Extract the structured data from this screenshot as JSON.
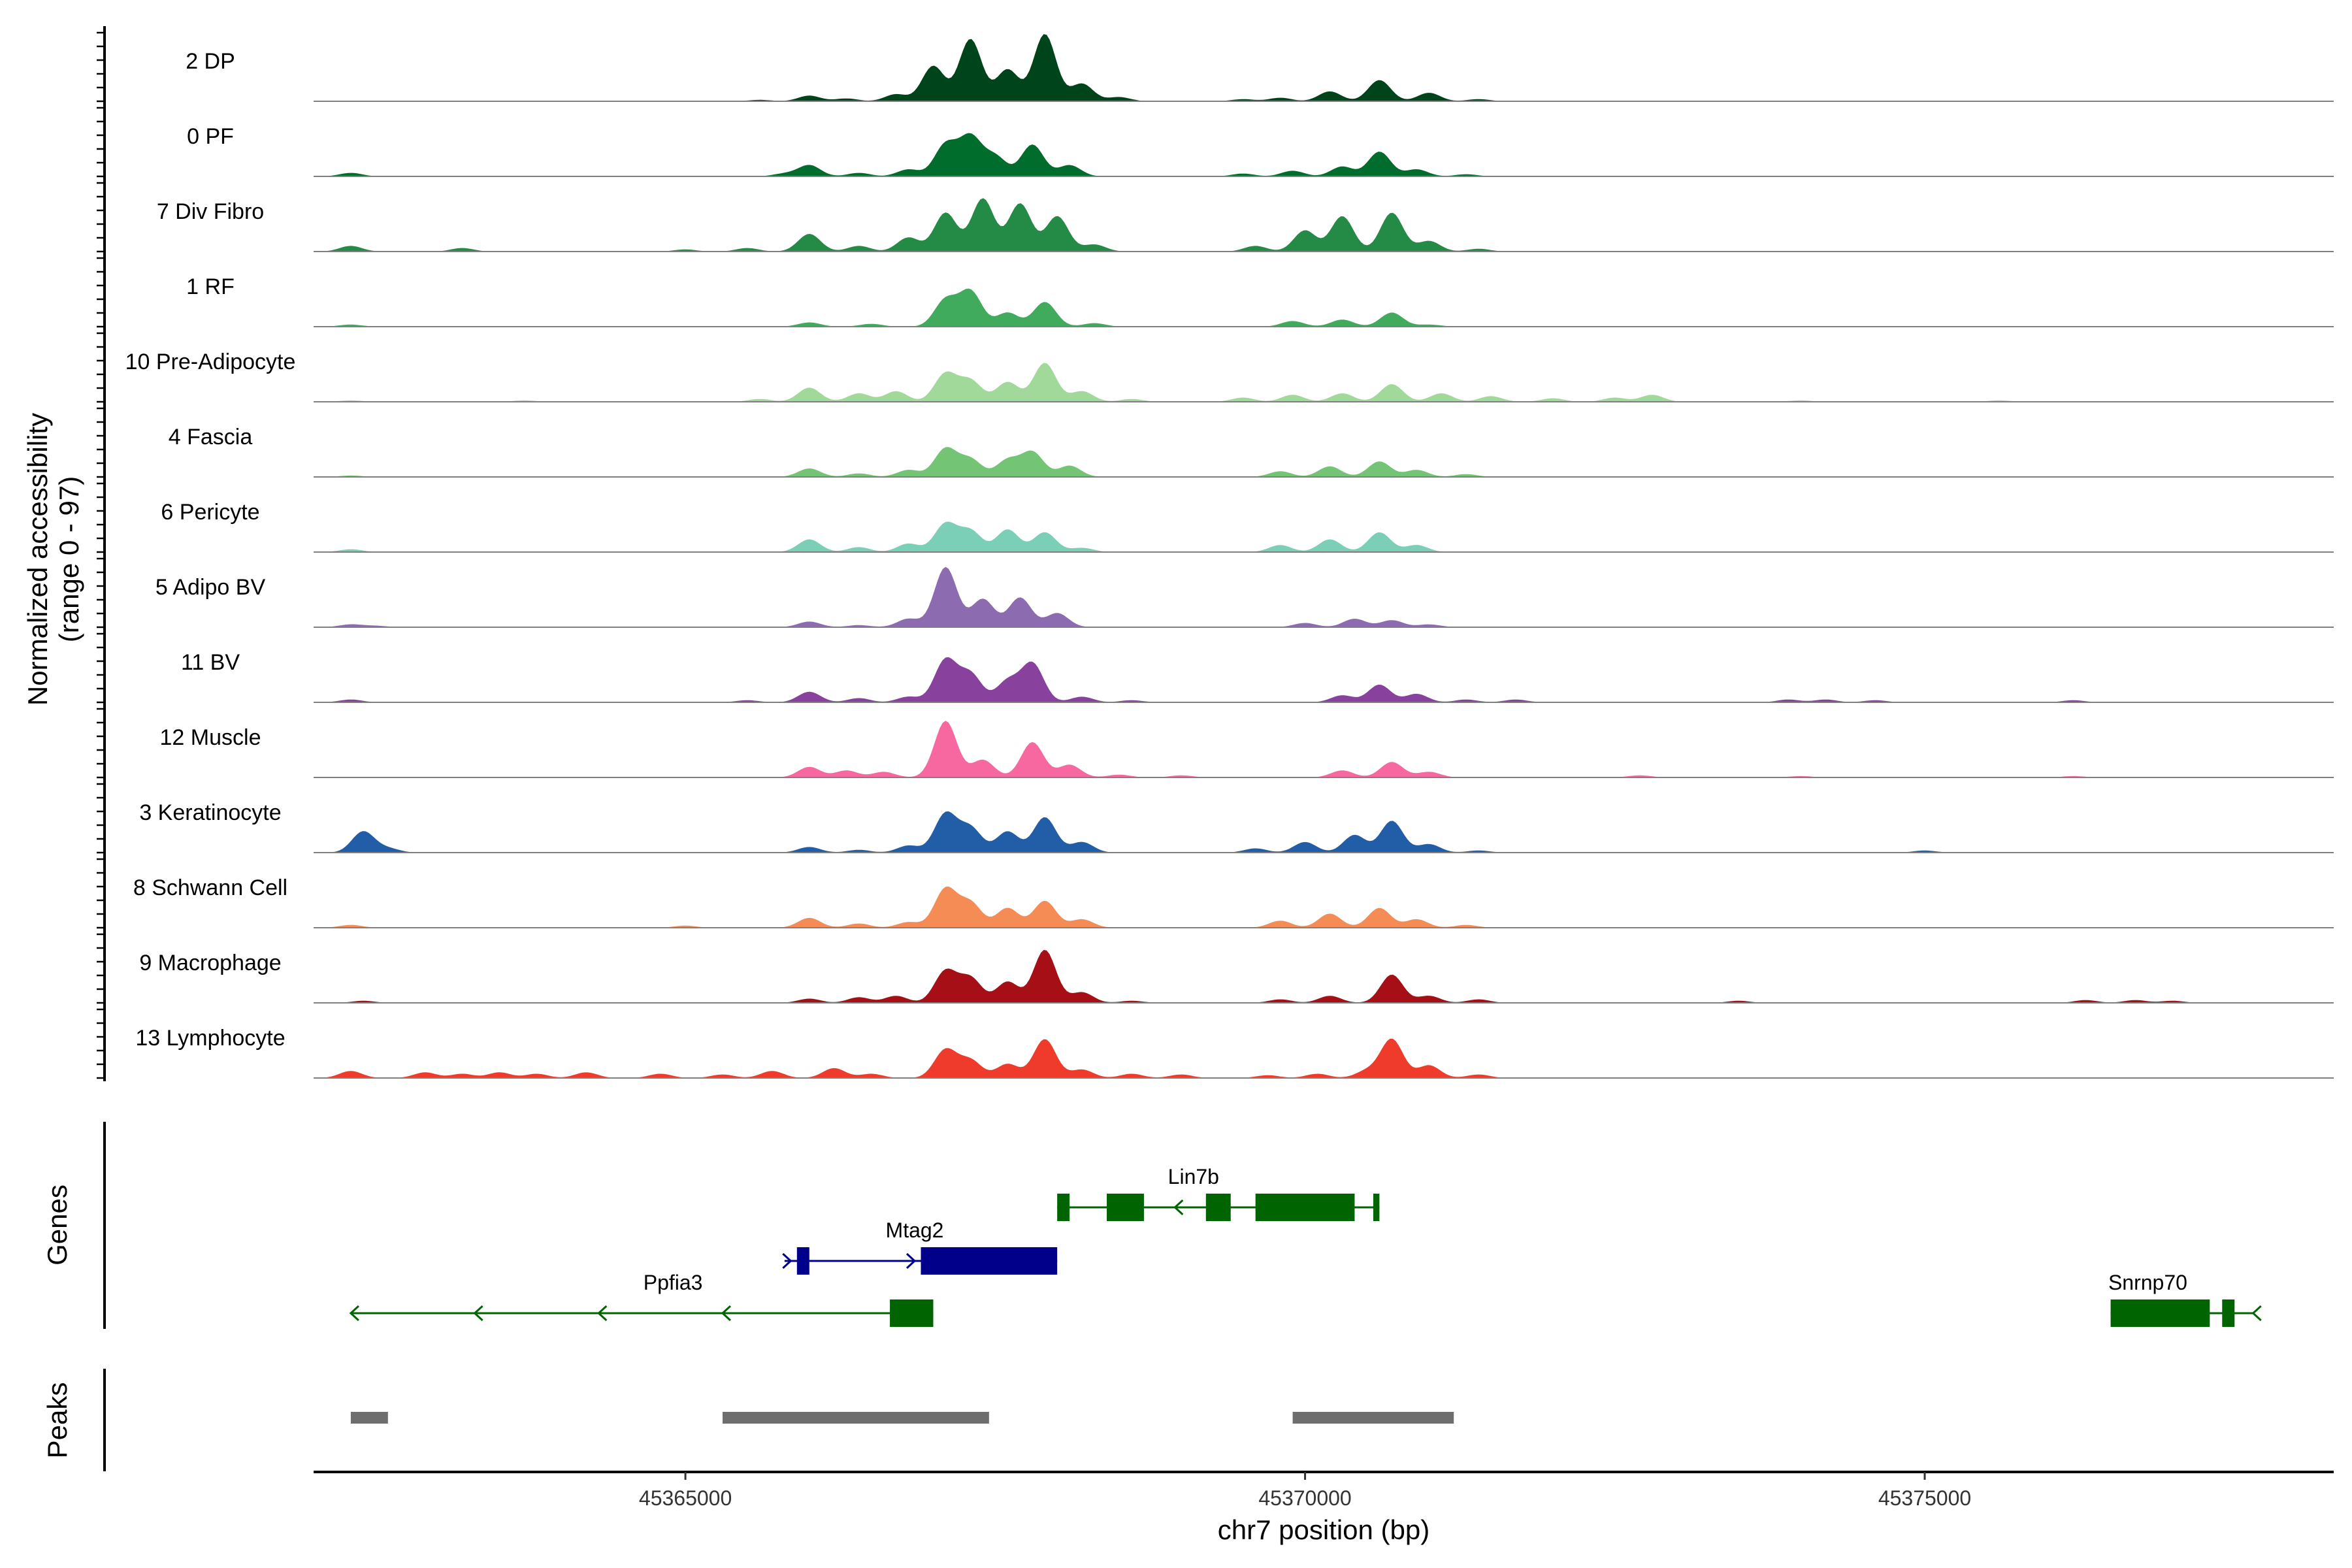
{
  "chart_data": {
    "type": "area",
    "y_axis_title_line1": "Normalized accessibility",
    "y_axis_title_line2": "(range 0 - 97)",
    "y_range": [
      0,
      97
    ],
    "x_axis_title": "chr7 position (bp)",
    "x_range": [
      45362000,
      45378300
    ],
    "x_ticks": [
      45365000,
      45370000,
      45375000
    ],
    "x_tick_labels": [
      "45365000",
      "45370000",
      "45375000"
    ],
    "tracks": [
      {
        "name": "2 DP",
        "color": "#00441b",
        "peaks": [
          [
            45365600,
            2
          ],
          [
            45366000,
            8
          ],
          [
            45366300,
            4
          ],
          [
            45366700,
            10
          ],
          [
            45367000,
            50
          ],
          [
            45367300,
            88
          ],
          [
            45367600,
            45
          ],
          [
            45367900,
            95
          ],
          [
            45368200,
            25
          ],
          [
            45368500,
            6
          ],
          [
            45369500,
            3
          ],
          [
            45369800,
            5
          ],
          [
            45370200,
            14
          ],
          [
            45370600,
            30
          ],
          [
            45371000,
            12
          ],
          [
            45371400,
            3
          ]
        ]
      },
      {
        "name": "0 PF",
        "color": "#006d2c",
        "peaks": [
          [
            45362300,
            5
          ],
          [
            45365800,
            4
          ],
          [
            45366000,
            16
          ],
          [
            45366400,
            5
          ],
          [
            45366800,
            10
          ],
          [
            45367100,
            45
          ],
          [
            45367300,
            55
          ],
          [
            45367500,
            28
          ],
          [
            45367800,
            45
          ],
          [
            45368100,
            16
          ],
          [
            45369500,
            4
          ],
          [
            45369900,
            8
          ],
          [
            45370300,
            14
          ],
          [
            45370600,
            35
          ],
          [
            45370900,
            10
          ],
          [
            45371300,
            3
          ]
        ]
      },
      {
        "name": "7 Div Fibro",
        "color": "#238b45",
        "peaks": [
          [
            45362300,
            8
          ],
          [
            45363200,
            5
          ],
          [
            45365000,
            3
          ],
          [
            45365500,
            5
          ],
          [
            45366000,
            25
          ],
          [
            45366400,
            8
          ],
          [
            45366800,
            20
          ],
          [
            45367100,
            55
          ],
          [
            45367400,
            75
          ],
          [
            45367700,
            68
          ],
          [
            45368000,
            50
          ],
          [
            45368300,
            10
          ],
          [
            45369600,
            8
          ],
          [
            45370000,
            30
          ],
          [
            45370300,
            50
          ],
          [
            45370700,
            55
          ],
          [
            45371000,
            15
          ],
          [
            45371400,
            4
          ]
        ]
      },
      {
        "name": "1 RF",
        "color": "#41ab5d",
        "peaks": [
          [
            45362300,
            3
          ],
          [
            45366000,
            6
          ],
          [
            45366500,
            4
          ],
          [
            45367100,
            38
          ],
          [
            45367300,
            50
          ],
          [
            45367600,
            20
          ],
          [
            45367900,
            35
          ],
          [
            45368300,
            5
          ],
          [
            45369900,
            8
          ],
          [
            45370300,
            10
          ],
          [
            45370700,
            20
          ],
          [
            45371000,
            3
          ]
        ]
      },
      {
        "name": "10 Pre-Adipocyte",
        "color": "#a1d99b",
        "peaks": [
          [
            45362300,
            2
          ],
          [
            45363700,
            2
          ],
          [
            45365600,
            4
          ],
          [
            45366000,
            20
          ],
          [
            45366400,
            12
          ],
          [
            45366700,
            15
          ],
          [
            45367100,
            40
          ],
          [
            45367300,
            30
          ],
          [
            45367600,
            28
          ],
          [
            45367900,
            55
          ],
          [
            45368200,
            15
          ],
          [
            45368600,
            4
          ],
          [
            45369500,
            6
          ],
          [
            45369900,
            10
          ],
          [
            45370300,
            12
          ],
          [
            45370700,
            25
          ],
          [
            45371100,
            12
          ],
          [
            45371500,
            8
          ],
          [
            45372000,
            5
          ],
          [
            45372500,
            6
          ],
          [
            45372800,
            10
          ],
          [
            45374000,
            2
          ],
          [
            45375600,
            2
          ]
        ]
      },
      {
        "name": "4 Fascia",
        "color": "#74c476",
        "peaks": [
          [
            45362300,
            2
          ],
          [
            45366000,
            12
          ],
          [
            45366400,
            5
          ],
          [
            45366800,
            10
          ],
          [
            45367100,
            40
          ],
          [
            45367300,
            25
          ],
          [
            45367600,
            24
          ],
          [
            45367800,
            35
          ],
          [
            45368100,
            16
          ],
          [
            45369800,
            8
          ],
          [
            45370200,
            15
          ],
          [
            45370600,
            22
          ],
          [
            45370900,
            10
          ],
          [
            45371300,
            4
          ]
        ]
      },
      {
        "name": "6 Pericyte",
        "color": "#7ccfb7",
        "peaks": [
          [
            45362300,
            4
          ],
          [
            45366000,
            18
          ],
          [
            45366400,
            7
          ],
          [
            45366800,
            12
          ],
          [
            45367100,
            40
          ],
          [
            45367300,
            30
          ],
          [
            45367600,
            32
          ],
          [
            45367900,
            28
          ],
          [
            45368200,
            6
          ],
          [
            45369800,
            10
          ],
          [
            45370200,
            18
          ],
          [
            45370600,
            28
          ],
          [
            45370900,
            10
          ]
        ]
      },
      {
        "name": "5 Adipo BV",
        "color": "#8c6bb1",
        "peaks": [
          [
            45362300,
            4
          ],
          [
            45362500,
            2
          ],
          [
            45366000,
            8
          ],
          [
            45366400,
            3
          ],
          [
            45366800,
            12
          ],
          [
            45367100,
            85
          ],
          [
            45367400,
            40
          ],
          [
            45367700,
            42
          ],
          [
            45368000,
            20
          ],
          [
            45370000,
            6
          ],
          [
            45370400,
            12
          ],
          [
            45370700,
            10
          ],
          [
            45371000,
            4
          ]
        ]
      },
      {
        "name": "11 BV",
        "color": "#88419d",
        "peaks": [
          [
            45362300,
            4
          ],
          [
            45365500,
            3
          ],
          [
            45366000,
            15
          ],
          [
            45366400,
            6
          ],
          [
            45366800,
            8
          ],
          [
            45367100,
            60
          ],
          [
            45367300,
            40
          ],
          [
            45367600,
            30
          ],
          [
            45367800,
            55
          ],
          [
            45368200,
            8
          ],
          [
            45368600,
            3
          ],
          [
            45370300,
            10
          ],
          [
            45370600,
            25
          ],
          [
            45370900,
            12
          ],
          [
            45371300,
            4
          ],
          [
            45371700,
            4
          ],
          [
            45373900,
            4
          ],
          [
            45374200,
            4
          ],
          [
            45374600,
            3
          ],
          [
            45376200,
            3
          ]
        ]
      },
      {
        "name": "12 Muscle",
        "color": "#f768a1",
        "peaks": [
          [
            45366000,
            15
          ],
          [
            45366300,
            10
          ],
          [
            45366600,
            8
          ],
          [
            45367100,
            80
          ],
          [
            45367400,
            25
          ],
          [
            45367800,
            50
          ],
          [
            45368100,
            18
          ],
          [
            45368500,
            4
          ],
          [
            45369000,
            3
          ],
          [
            45370300,
            10
          ],
          [
            45370700,
            22
          ],
          [
            45371000,
            8
          ],
          [
            45372700,
            3
          ],
          [
            45374000,
            2
          ],
          [
            45376200,
            2
          ]
        ]
      },
      {
        "name": "3 Keratinocyte",
        "color": "#225ea8",
        "peaks": [
          [
            45362400,
            30
          ],
          [
            45362600,
            6
          ],
          [
            45366000,
            8
          ],
          [
            45366400,
            4
          ],
          [
            45366800,
            10
          ],
          [
            45367100,
            55
          ],
          [
            45367300,
            35
          ],
          [
            45367600,
            30
          ],
          [
            45367900,
            50
          ],
          [
            45368200,
            15
          ],
          [
            45369600,
            6
          ],
          [
            45370000,
            15
          ],
          [
            45370400,
            25
          ],
          [
            45370700,
            45
          ],
          [
            45371000,
            12
          ],
          [
            45371400,
            3
          ],
          [
            45375000,
            3
          ]
        ]
      },
      {
        "name": "8 Schwann Cell",
        "color": "#f58c55",
        "peaks": [
          [
            45362300,
            4
          ],
          [
            45365000,
            3
          ],
          [
            45366000,
            14
          ],
          [
            45366400,
            6
          ],
          [
            45366800,
            8
          ],
          [
            45367100,
            55
          ],
          [
            45367300,
            35
          ],
          [
            45367600,
            28
          ],
          [
            45367900,
            38
          ],
          [
            45368200,
            12
          ],
          [
            45369800,
            10
          ],
          [
            45370200,
            20
          ],
          [
            45370600,
            28
          ],
          [
            45370900,
            12
          ],
          [
            45371300,
            4
          ]
        ]
      },
      {
        "name": "9 Macrophage",
        "color": "#a50f15",
        "peaks": [
          [
            45362400,
            3
          ],
          [
            45366000,
            6
          ],
          [
            45366400,
            8
          ],
          [
            45366700,
            10
          ],
          [
            45367100,
            45
          ],
          [
            45367300,
            35
          ],
          [
            45367600,
            30
          ],
          [
            45367900,
            75
          ],
          [
            45368200,
            15
          ],
          [
            45368600,
            3
          ],
          [
            45369800,
            5
          ],
          [
            45370200,
            10
          ],
          [
            45370700,
            40
          ],
          [
            45371000,
            10
          ],
          [
            45371400,
            5
          ],
          [
            45373500,
            3
          ],
          [
            45376300,
            4
          ],
          [
            45376700,
            4
          ],
          [
            45377000,
            3
          ]
        ]
      },
      {
        "name": "13 Lymphocyte",
        "color": "#ef3b2c",
        "peaks": [
          [
            45362300,
            10
          ],
          [
            45362900,
            8
          ],
          [
            45363200,
            6
          ],
          [
            45363500,
            8
          ],
          [
            45363800,
            6
          ],
          [
            45364200,
            8
          ],
          [
            45364800,
            6
          ],
          [
            45365300,
            5
          ],
          [
            45365700,
            10
          ],
          [
            45366200,
            14
          ],
          [
            45366500,
            6
          ],
          [
            45367100,
            40
          ],
          [
            45367300,
            25
          ],
          [
            45367600,
            20
          ],
          [
            45367900,
            55
          ],
          [
            45368200,
            12
          ],
          [
            45368600,
            6
          ],
          [
            45369000,
            5
          ],
          [
            45369700,
            4
          ],
          [
            45370100,
            6
          ],
          [
            45370500,
            10
          ],
          [
            45370700,
            55
          ],
          [
            45371000,
            18
          ],
          [
            45371400,
            5
          ]
        ]
      }
    ],
    "genes_title": "Genes",
    "genes": [
      {
        "name": "Lin7b",
        "strand": "-",
        "start": 45368000,
        "end": 45370600,
        "exons": [
          [
            45368000,
            45368100
          ],
          [
            45368400,
            45368700
          ],
          [
            45369200,
            45369400
          ],
          [
            45369600,
            45370400
          ],
          [
            45370550,
            45370600
          ]
        ],
        "arrows": [
          45368950
        ]
      },
      {
        "name": "Mtag2",
        "strand": "+",
        "start": 45365800,
        "end": 45368000,
        "exons": [
          [
            45365900,
            45366000
          ],
          [
            45366900,
            45368000
          ]
        ],
        "arrows": [
          45365850,
          45366850
        ]
      },
      {
        "name": "Ppfia3",
        "strand": "-",
        "start": 45362300,
        "end": 45367000,
        "exons": [
          [
            45366650,
            45367000
          ]
        ],
        "arrows": [
          45362300,
          45363300,
          45364300,
          45365300
        ]
      },
      {
        "name": "Snrnp70",
        "strand": "-",
        "start": 45376500,
        "end": 45377650,
        "exons": [
          [
            45376500,
            45377300
          ],
          [
            45377400,
            45377500
          ]
        ],
        "arrows": [
          45377650
        ]
      }
    ],
    "peaks_title": "Peaks",
    "peak_regions": [
      [
        45362300,
        45362600
      ],
      [
        45365300,
        45367450
      ],
      [
        45369900,
        45371200
      ]
    ],
    "peak_color": "#6e6e6e",
    "baseline_color": "#7f7f7f"
  }
}
